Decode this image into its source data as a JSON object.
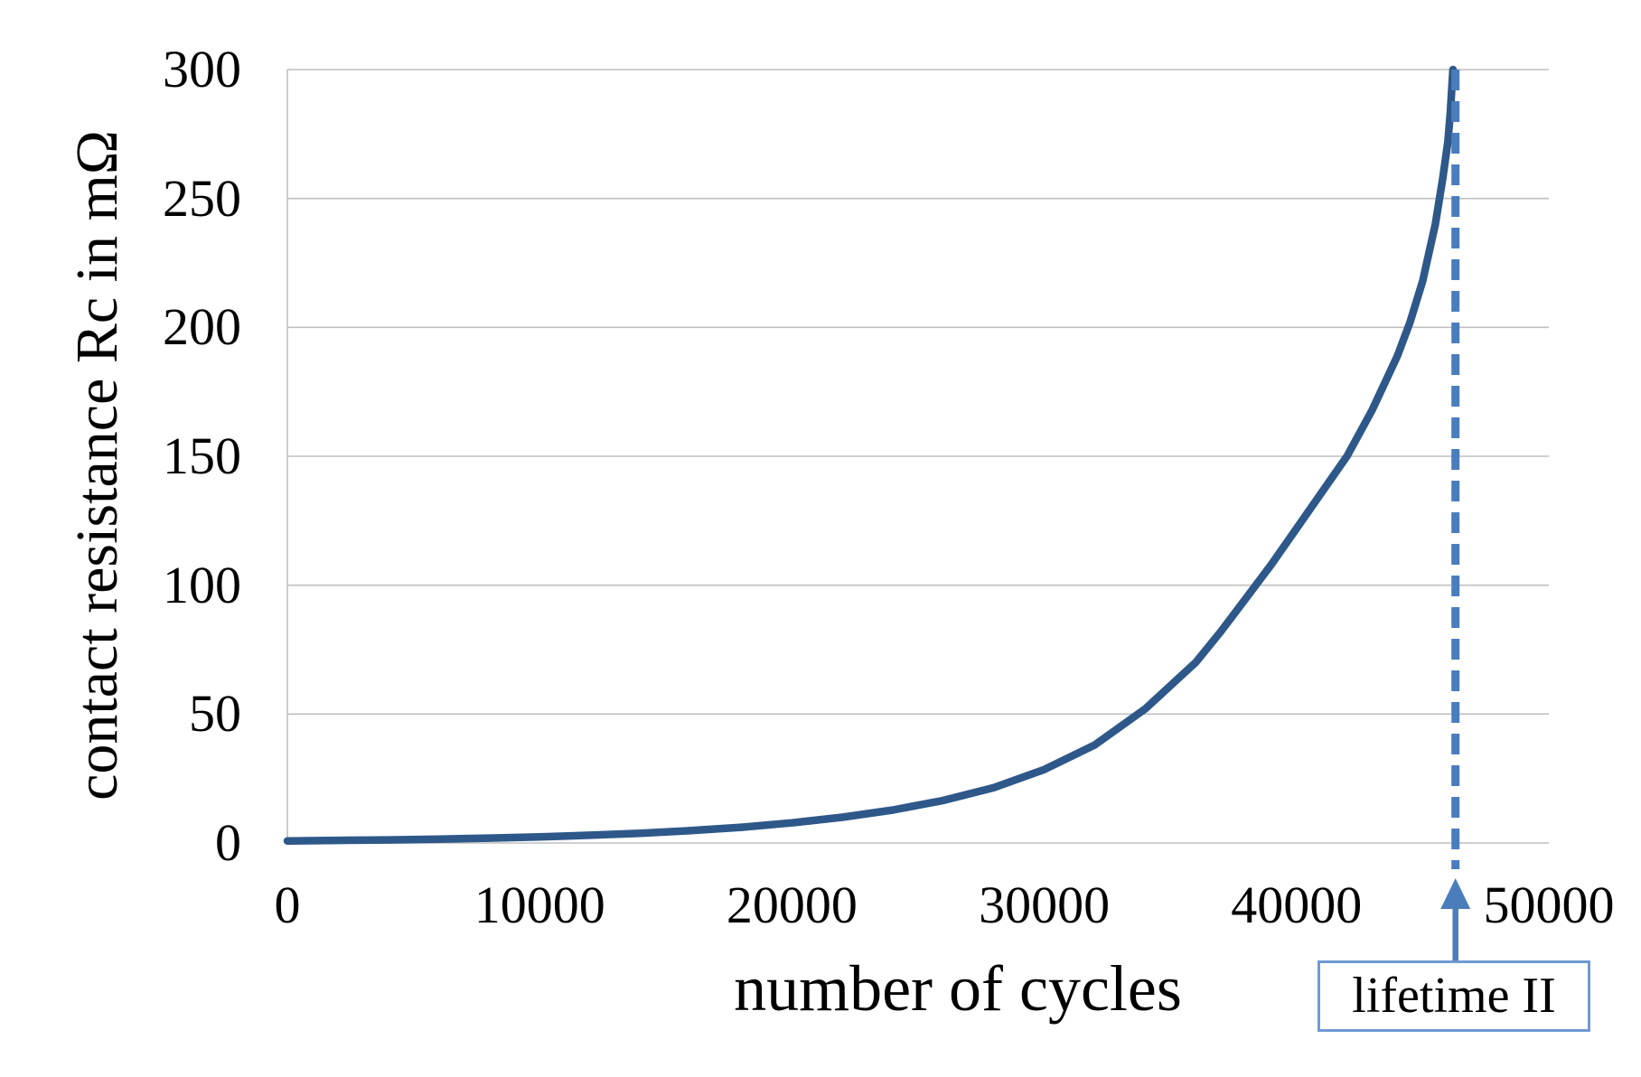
{
  "chart_data": {
    "type": "line",
    "title": "",
    "xlabel": "number of cycles",
    "ylabel": "contact resistance Rc in mΩ",
    "xlim": [
      0,
      50000
    ],
    "ylim": [
      0,
      300
    ],
    "x_tick_labels": [
      "0",
      "10000",
      "20000",
      "30000",
      "40000",
      "50000"
    ],
    "x_tick_values": [
      0,
      10000,
      20000,
      30000,
      40000,
      50000
    ],
    "y_tick_labels": [
      "0",
      "50",
      "100",
      "150",
      "200",
      "250",
      "300"
    ],
    "y_tick_values": [
      0,
      50,
      100,
      150,
      200,
      250,
      300
    ],
    "grid": "horizontal",
    "legend": "none",
    "series": [
      {
        "name": "contact resistance Rc",
        "color": "#2e5889",
        "stroke_width": 8.5,
        "points": [
          [
            0,
            0.8
          ],
          [
            2000,
            1.0
          ],
          [
            4000,
            1.2
          ],
          [
            6000,
            1.5
          ],
          [
            8000,
            1.9
          ],
          [
            10000,
            2.4
          ],
          [
            12000,
            3.0
          ],
          [
            14000,
            3.8
          ],
          [
            16000,
            4.8
          ],
          [
            18000,
            6.1
          ],
          [
            20000,
            7.8
          ],
          [
            22000,
            10.0
          ],
          [
            24000,
            12.8
          ],
          [
            26000,
            16.5
          ],
          [
            28000,
            21.5
          ],
          [
            30000,
            28.5
          ],
          [
            32000,
            38.0
          ],
          [
            34000,
            52.0
          ],
          [
            36000,
            70.0
          ],
          [
            37000,
            82.0
          ],
          [
            38000,
            95.0
          ],
          [
            39000,
            108.0
          ],
          [
            40000,
            122.0
          ],
          [
            41000,
            136.0
          ],
          [
            42000,
            150.0
          ],
          [
            43000,
            168.0
          ],
          [
            44000,
            189.0
          ],
          [
            44500,
            202.0
          ],
          [
            45000,
            218.0
          ],
          [
            45500,
            240.0
          ],
          [
            45800,
            258.0
          ],
          [
            46000,
            272.0
          ],
          [
            46100,
            284.0
          ],
          [
            46200,
            300.0
          ]
        ]
      }
    ],
    "annotation": {
      "label": "lifetime II",
      "x": 46300,
      "line_style": "dashed",
      "line_color": "#4a7dbb",
      "arrow_color": "#4a7dbb",
      "arrow_direction": "up",
      "box_border_color": "#6f9ad1"
    },
    "colors": {
      "gridline": "#bfbfbf",
      "axis": "#bfbfbf",
      "text": "#000000",
      "background": "#ffffff"
    }
  }
}
